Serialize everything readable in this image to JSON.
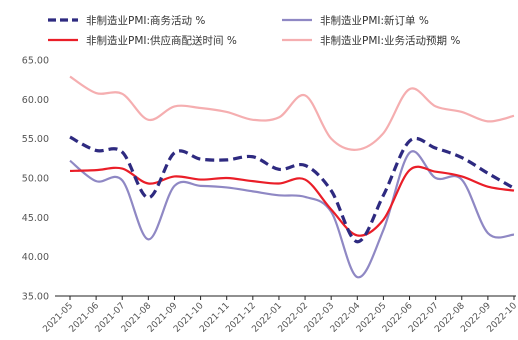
{
  "chart_data": {
    "type": "line",
    "title": "",
    "xlabel": "",
    "ylabel": "",
    "ylim": [
      35,
      65
    ],
    "yticks": [
      "35.00",
      "40.00",
      "45.00",
      "50.00",
      "55.00",
      "60.00",
      "65.00"
    ],
    "grid": false,
    "legend_position": "top",
    "categories": [
      "2021-05",
      "2021-06",
      "2021-07",
      "2021-08",
      "2021-09",
      "2021-10",
      "2021-11",
      "2021-12",
      "2022-01",
      "2022-02",
      "2022-03",
      "2022-04",
      "2022-05",
      "2022-06",
      "2022-07",
      "2022-08",
      "2022-09",
      "2022-10"
    ],
    "series": [
      {
        "name": "非制造业PMI:商务活动 %",
        "color": "#2e2a80",
        "style": "dashed",
        "values": [
          55.2,
          53.5,
          53.3,
          47.5,
          53.2,
          52.4,
          52.3,
          52.7,
          51.1,
          51.6,
          48.4,
          41.9,
          47.8,
          54.7,
          53.8,
          52.6,
          50.6,
          48.7
        ]
      },
      {
        "name": "非制造业PMI:新订单 %",
        "color": "#8f88c4",
        "style": "solid",
        "values": [
          52.2,
          49.6,
          49.7,
          42.2,
          49.0,
          49.0,
          48.8,
          48.3,
          47.8,
          47.6,
          45.7,
          37.4,
          43.4,
          53.2,
          50.0,
          49.8,
          43.0,
          42.8
        ]
      },
      {
        "name": "非制造业PMI:供应商配送时间 %",
        "color": "#ea1e28",
        "style": "solid",
        "values": [
          50.9,
          51.0,
          51.2,
          49.3,
          50.2,
          49.8,
          50.0,
          49.6,
          49.3,
          49.8,
          46.0,
          42.7,
          44.7,
          51.0,
          50.8,
          50.2,
          48.9,
          48.4
        ]
      },
      {
        "name": "非制造业PMI:业务活动预期 %",
        "color": "#f5aeb0",
        "style": "solid",
        "values": [
          62.9,
          60.8,
          60.7,
          57.4,
          59.1,
          58.9,
          58.4,
          57.4,
          57.7,
          60.5,
          55.0,
          53.6,
          55.7,
          61.3,
          59.1,
          58.4,
          57.2,
          57.9
        ]
      }
    ]
  }
}
